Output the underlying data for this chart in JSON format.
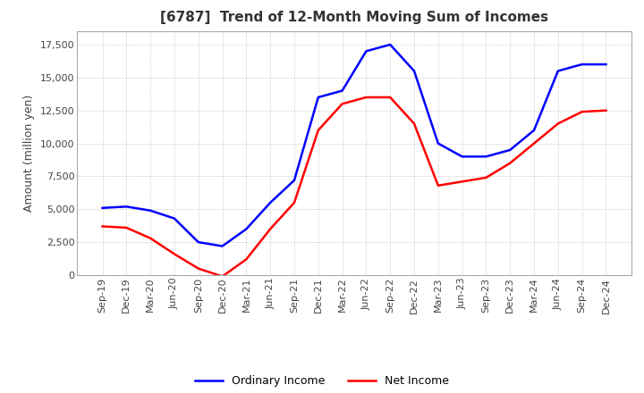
{
  "title": "[6787]  Trend of 12-Month Moving Sum of Incomes",
  "ylabel": "Amount (million yen)",
  "title_fontsize": 11,
  "label_fontsize": 9,
  "tick_fontsize": 8,
  "background_color": "#ffffff",
  "grid_color": "#aaaaaa",
  "ylim": [
    0,
    18500
  ],
  "yticks": [
    0,
    2500,
    5000,
    7500,
    10000,
    12500,
    15000,
    17500
  ],
  "x_labels": [
    "Sep-19",
    "Dec-19",
    "Mar-20",
    "Jun-20",
    "Sep-20",
    "Dec-20",
    "Mar-21",
    "Jun-21",
    "Sep-21",
    "Dec-21",
    "Mar-22",
    "Jun-22",
    "Sep-22",
    "Dec-22",
    "Mar-23",
    "Jun-23",
    "Sep-23",
    "Dec-23",
    "Mar-24",
    "Jun-24",
    "Sep-24",
    "Dec-24"
  ],
  "ordinary_income": [
    5100,
    5200,
    4900,
    4300,
    2500,
    2200,
    3500,
    5500,
    7200,
    13500,
    14000,
    17000,
    17500,
    15500,
    10000,
    9000,
    9000,
    9500,
    11000,
    15500,
    16000,
    16000
  ],
  "net_income": [
    3700,
    3600,
    2800,
    1600,
    500,
    -100,
    1200,
    3500,
    5500,
    11000,
    13000,
    13500,
    13500,
    11500,
    6800,
    7100,
    7400,
    8500,
    10000,
    11500,
    12400,
    12500
  ],
  "ordinary_color": "#0000ff",
  "net_color": "#ff0000",
  "line_width": 1.8
}
